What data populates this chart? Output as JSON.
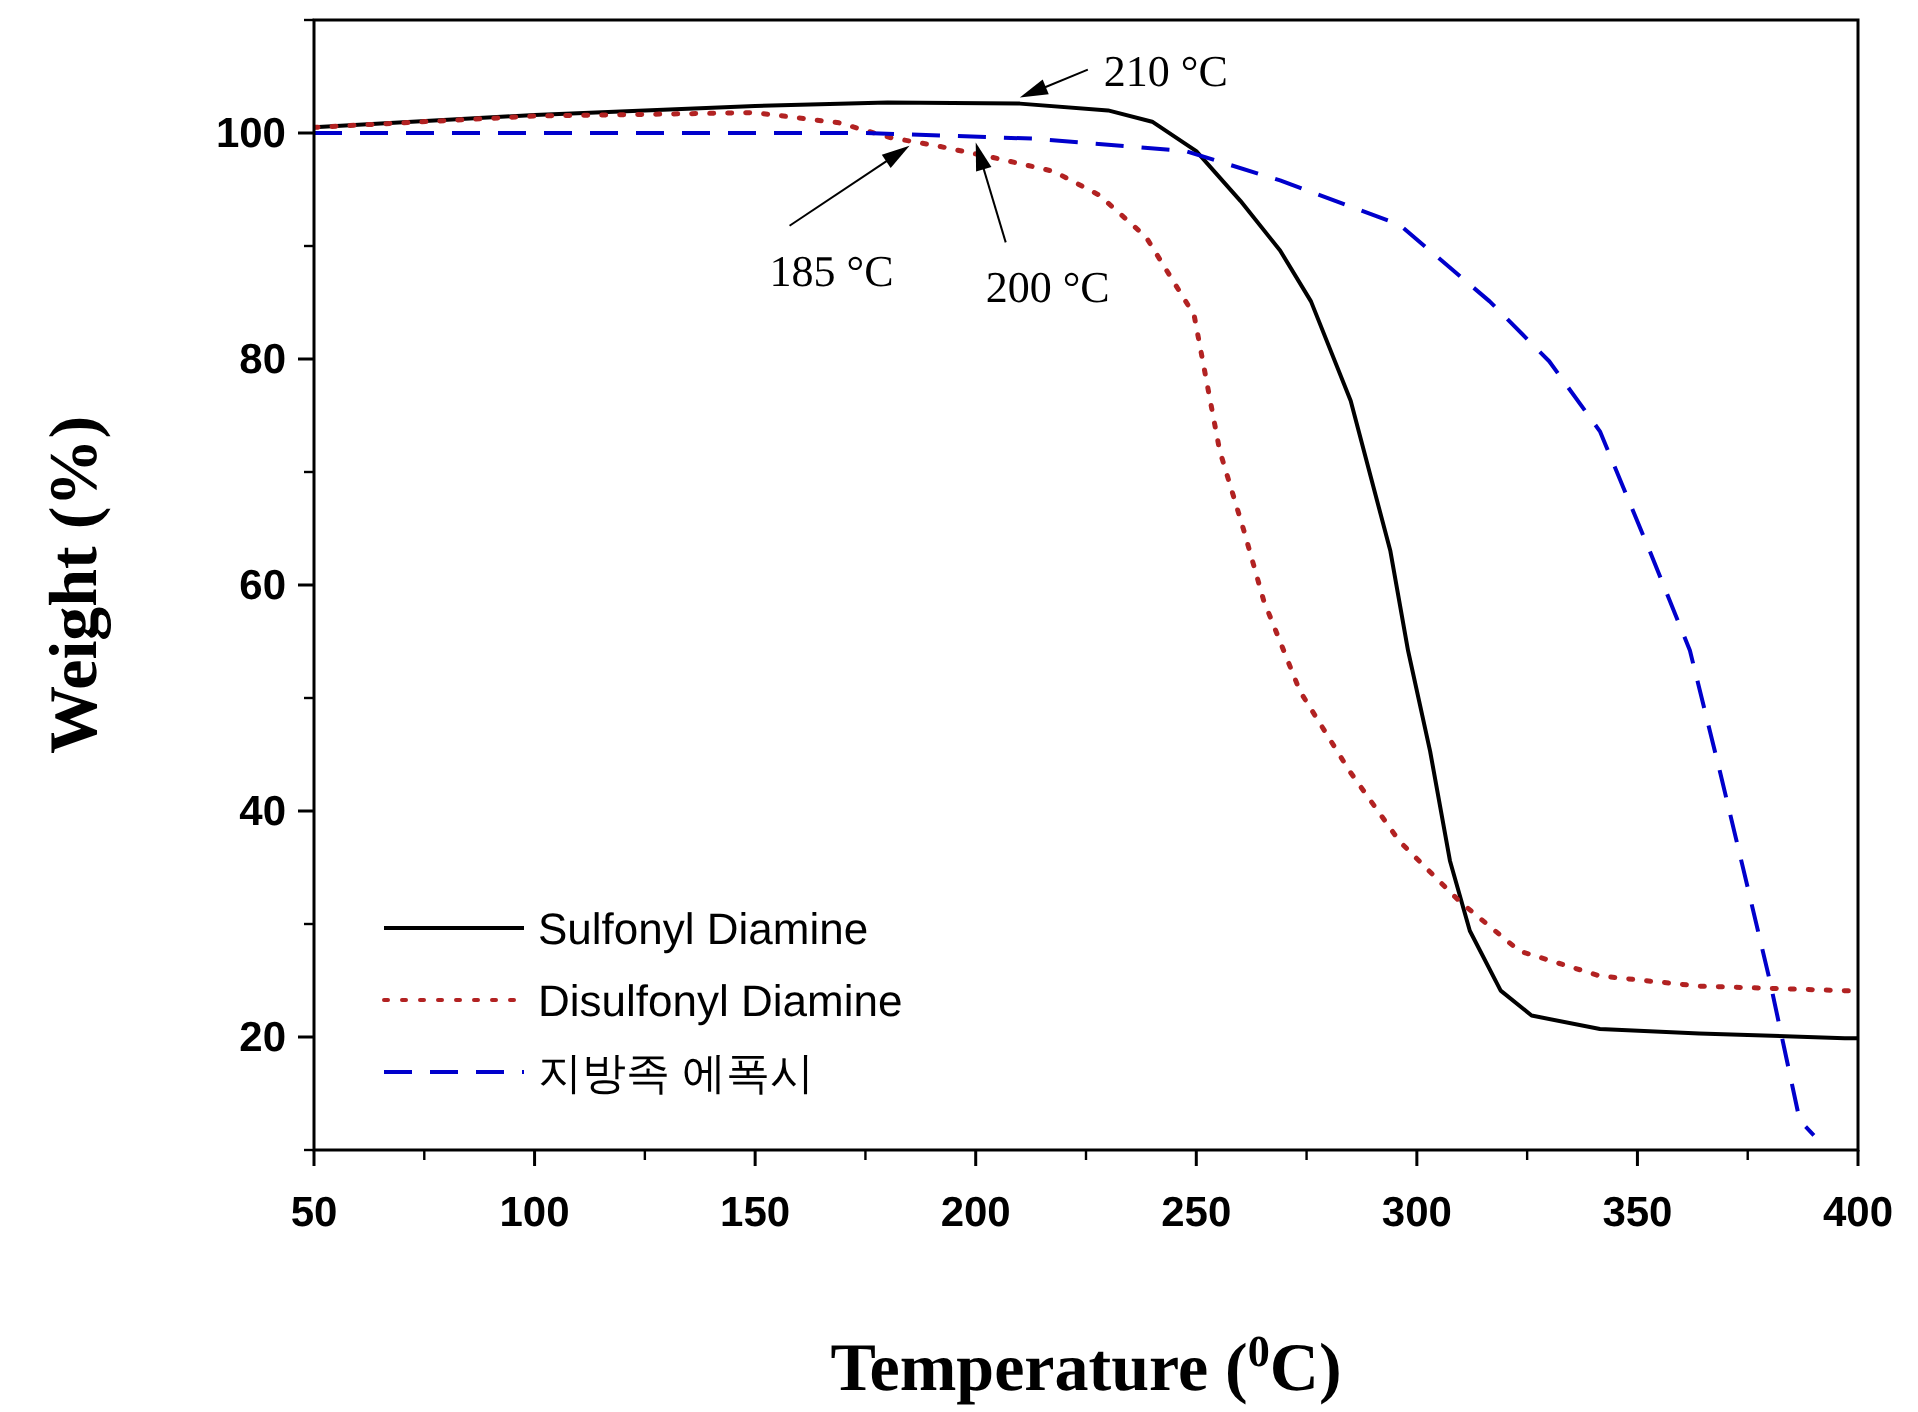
{
  "chart_data": {
    "type": "line",
    "xlabel": "Temperature ($^{0}$C)",
    "ylabel": "Weight (%)",
    "xlim": [
      50,
      400
    ],
    "ylim": [
      10,
      110
    ],
    "xticks": [
      50,
      100,
      150,
      200,
      250,
      300,
      350,
      400
    ],
    "yticks": [
      20,
      40,
      60,
      80,
      100
    ],
    "legend": "bottom left",
    "series": [
      {
        "name": "Sulfonyl Diamine",
        "color": "#000000",
        "line_style": "solid",
        "x": [
          50,
          100,
          150,
          180,
          210,
          230,
          240,
          250,
          260,
          269,
          276,
          285,
          294,
          298,
          303,
          307.5,
          312,
          319,
          326,
          341.5,
          364,
          397,
          400
        ],
        "values": [
          100.5,
          101.6,
          102.4,
          102.7,
          102.6,
          102,
          101,
          98.4,
          94,
          89.6,
          85.1,
          76.3,
          63,
          54.2,
          45.3,
          35.6,
          29.4,
          24.1,
          21.9,
          20.7,
          20.3,
          19.9,
          19.9
        ]
      },
      {
        "name": "Disulfonyl Diamine",
        "color": "#b22222",
        "line_style": "dotted",
        "x": [
          50,
          100,
          150,
          169,
          180.6,
          192,
          205.5,
          217.7,
          228,
          238.6,
          249.5,
          255.3,
          260.8,
          265.3,
          273.5,
          284.8,
          296.1,
          309.7,
          323.3,
          341.5,
          364,
          397,
          400
        ],
        "values": [
          100.5,
          101.5,
          101.8,
          100.9,
          99.6,
          98.8,
          97.7,
          96.6,
          94.5,
          90.8,
          83.9,
          71.9,
          64.8,
          58.6,
          50.6,
          43.5,
          37.3,
          32,
          27.6,
          25.4,
          24.5,
          24.1,
          24.1
        ]
      },
      {
        "name": "지방족 에폭시",
        "color": "#0000cc",
        "line_style": "dashed",
        "x": [
          50,
          100,
          175,
          213,
          247.6,
          269,
          296,
          316.5,
          330,
          341.5,
          352.8,
          361.9,
          368.7,
          374.1,
          380,
          386.8,
          390
        ],
        "values": [
          100,
          100,
          100,
          99.5,
          98.4,
          95.8,
          91.9,
          85.1,
          79.8,
          73.6,
          63,
          54.2,
          43.5,
          34.7,
          25,
          12.6,
          11.3
        ]
      }
    ],
    "annotations": [
      {
        "text": "210 °C",
        "x": 210,
        "y": 102.6
      },
      {
        "text": "185 °C",
        "x": 185,
        "y": 99.4
      },
      {
        "text": "200 °C",
        "x": 200,
        "y": 99.7
      }
    ]
  }
}
